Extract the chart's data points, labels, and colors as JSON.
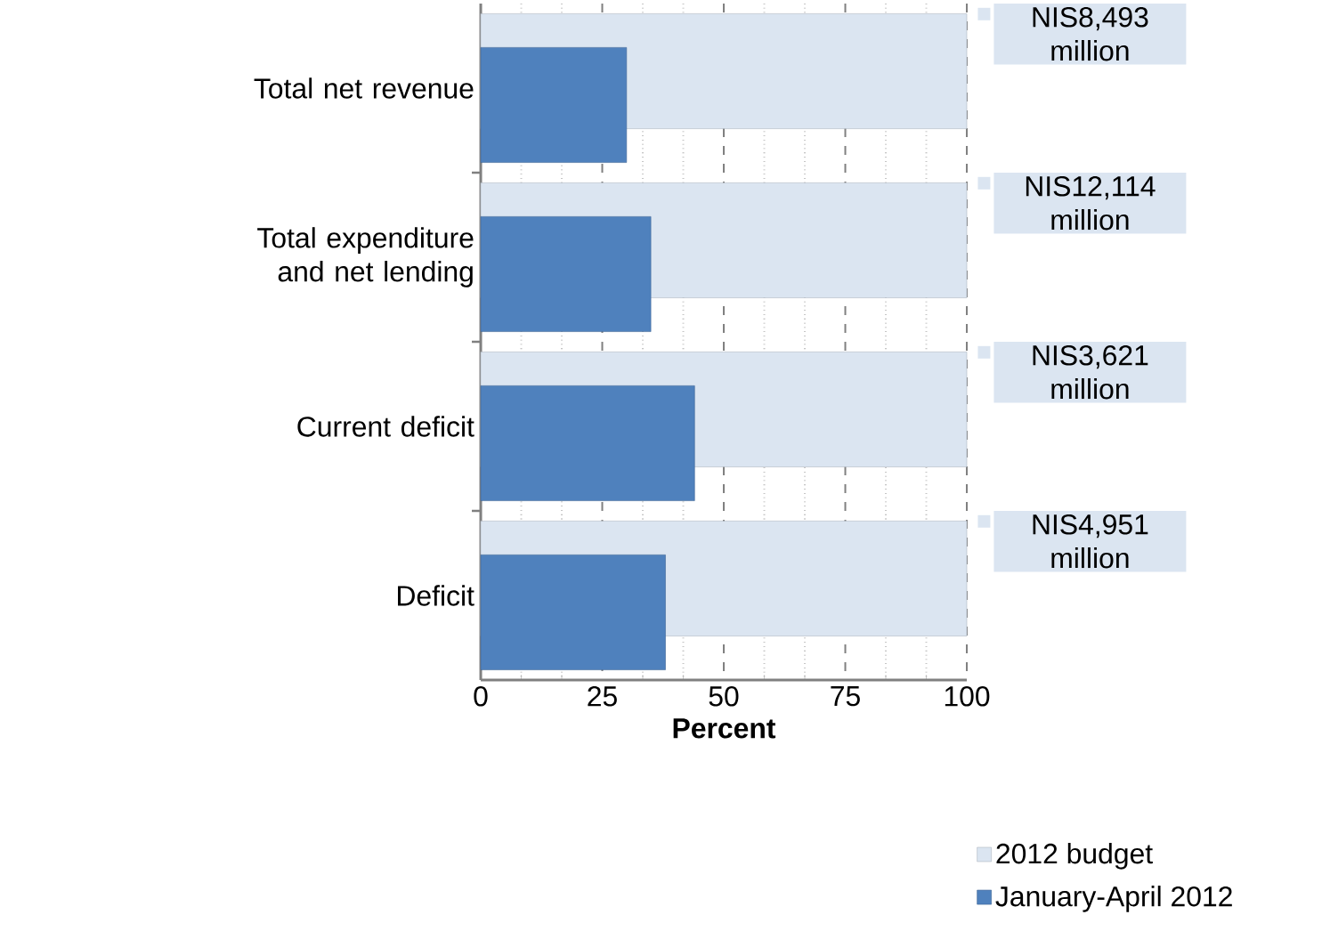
{
  "chart_data": {
    "type": "bar",
    "orientation": "horizontal",
    "categories": [
      "Total net revenue",
      "Total expenditure and net lending",
      "Current deficit",
      "Deficit"
    ],
    "series": [
      {
        "name": "2012 budget",
        "color": "#dbe5f1",
        "values": [
          100,
          100,
          100,
          100
        ],
        "value_labels": [
          "NIS8,493 million",
          "NIS12,114 million",
          "NIS3,621 million",
          "NIS4,951 million"
        ]
      },
      {
        "name": "January-April 2012",
        "color": "#4f81bd",
        "values": [
          30,
          35,
          44,
          38
        ]
      }
    ],
    "xlim": [
      0,
      100
    ],
    "xticks": [
      0,
      25,
      50,
      75,
      100
    ],
    "xlabel": "Percent",
    "grid": "x",
    "legend": "bottom right"
  }
}
